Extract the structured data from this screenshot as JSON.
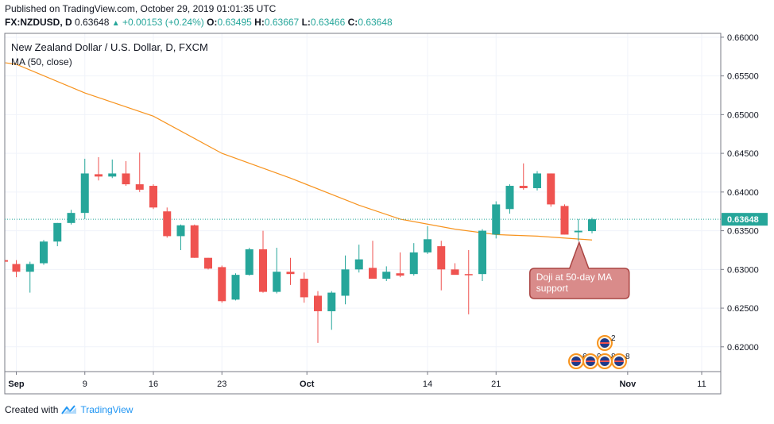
{
  "header": {
    "published": "Published on TradingView.com, October 29, 2019 01:01:35 UTC",
    "symbol": "FX:NZDUSD, D",
    "price": "0.63648",
    "change": "+0.00153 (+0.24%)",
    "o_label": "O:",
    "o": "0.63495",
    "h_label": "H:",
    "h": "0.63667",
    "l_label": "L:",
    "l": "0.63466",
    "c_label": "C:",
    "c": "0.63648"
  },
  "footer": {
    "created": "Created with",
    "brand": "TradingView"
  },
  "colors": {
    "up": "#26a69a",
    "down": "#ef5350",
    "ma": "#f7931e",
    "last_line": "#26a69a",
    "annotation_bg": "#d98b8a",
    "annotation_border": "#a94442",
    "grid": "#f0f3fa"
  },
  "chart_data": {
    "type": "candlestick",
    "title": "New Zealand Dollar / U.S. Dollar, D, FXCM",
    "indicator_label": "MA (50, close)",
    "ylim": [
      0.6168,
      0.6605
    ],
    "yticks": [
      0.62,
      0.625,
      0.63,
      0.635,
      0.64,
      0.645,
      0.65,
      0.655,
      0.66
    ],
    "ytick_labels": [
      "0.62000",
      "0.62500",
      "0.63000",
      "0.63500",
      "0.64000",
      "0.64500",
      "0.65000",
      "0.65500",
      "0.66000"
    ],
    "last_price_label": "0.63648",
    "last_price": 0.63648,
    "xticks": [
      {
        "label": "Sep",
        "i": 0,
        "bold": true
      },
      {
        "label": "9",
        "i": 5
      },
      {
        "label": "16",
        "i": 10
      },
      {
        "label": "23",
        "i": 15
      },
      {
        "label": "Oct",
        "i": 21.2,
        "bold": true
      },
      {
        "label": "14",
        "i": 30
      },
      {
        "label": "21",
        "i": 35
      },
      {
        "label": "Nov",
        "i": 44.6,
        "bold": true
      },
      {
        "label": "11",
        "i": 50
      }
    ],
    "candles": [
      {
        "o": 0.6307,
        "h": 0.6312,
        "l": 0.629,
        "c": 0.6297
      },
      {
        "o": 0.6297,
        "h": 0.631,
        "l": 0.627,
        "c": 0.6307
      },
      {
        "o": 0.6308,
        "h": 0.6338,
        "l": 0.6306,
        "c": 0.6336
      },
      {
        "o": 0.6336,
        "h": 0.636,
        "l": 0.633,
        "c": 0.636
      },
      {
        "o": 0.636,
        "h": 0.6377,
        "l": 0.6358,
        "c": 0.6373
      },
      {
        "o": 0.6373,
        "h": 0.6443,
        "l": 0.6365,
        "c": 0.6424
      },
      {
        "o": 0.6423,
        "h": 0.6445,
        "l": 0.6415,
        "c": 0.642
      },
      {
        "o": 0.642,
        "h": 0.6442,
        "l": 0.6418,
        "c": 0.6424
      },
      {
        "o": 0.6424,
        "h": 0.644,
        "l": 0.6408,
        "c": 0.641
      },
      {
        "o": 0.641,
        "h": 0.6451,
        "l": 0.64,
        "c": 0.6403
      },
      {
        "o": 0.6408,
        "h": 0.641,
        "l": 0.6378,
        "c": 0.638
      },
      {
        "o": 0.6375,
        "h": 0.638,
        "l": 0.6341,
        "c": 0.6343
      },
      {
        "o": 0.6343,
        "h": 0.6358,
        "l": 0.6325,
        "c": 0.6357
      },
      {
        "o": 0.6357,
        "h": 0.6358,
        "l": 0.6315,
        "c": 0.6315
      },
      {
        "o": 0.6315,
        "h": 0.6315,
        "l": 0.63,
        "c": 0.6301
      },
      {
        "o": 0.6303,
        "h": 0.6305,
        "l": 0.6257,
        "c": 0.6259
      },
      {
        "o": 0.6261,
        "h": 0.6295,
        "l": 0.626,
        "c": 0.6293
      },
      {
        "o": 0.6293,
        "h": 0.6328,
        "l": 0.6292,
        "c": 0.6326
      },
      {
        "o": 0.6326,
        "h": 0.635,
        "l": 0.627,
        "c": 0.6271
      },
      {
        "o": 0.6271,
        "h": 0.6328,
        "l": 0.6269,
        "c": 0.6297
      },
      {
        "o": 0.6297,
        "h": 0.6315,
        "l": 0.628,
        "c": 0.6294
      },
      {
        "o": 0.6288,
        "h": 0.6296,
        "l": 0.6257,
        "c": 0.6264
      },
      {
        "o": 0.6266,
        "h": 0.6272,
        "l": 0.6205,
        "c": 0.6246
      },
      {
        "o": 0.6246,
        "h": 0.6272,
        "l": 0.6222,
        "c": 0.627
      },
      {
        "o": 0.6266,
        "h": 0.6318,
        "l": 0.6255,
        "c": 0.63
      },
      {
        "o": 0.63,
        "h": 0.6332,
        "l": 0.6296,
        "c": 0.6313
      },
      {
        "o": 0.6302,
        "h": 0.6337,
        "l": 0.629,
        "c": 0.6288
      },
      {
        "o": 0.6288,
        "h": 0.6304,
        "l": 0.6285,
        "c": 0.6297
      },
      {
        "o": 0.6295,
        "h": 0.6322,
        "l": 0.629,
        "c": 0.6292
      },
      {
        "o": 0.6294,
        "h": 0.6334,
        "l": 0.6292,
        "c": 0.6322
      },
      {
        "o": 0.6322,
        "h": 0.6356,
        "l": 0.632,
        "c": 0.6339
      },
      {
        "o": 0.633,
        "h": 0.6337,
        "l": 0.6273,
        "c": 0.63
      },
      {
        "o": 0.63,
        "h": 0.6308,
        "l": 0.6297,
        "c": 0.6293
      },
      {
        "o": 0.6294,
        "h": 0.6325,
        "l": 0.6242,
        "c": 0.6293
      },
      {
        "o": 0.6294,
        "h": 0.6352,
        "l": 0.6285,
        "c": 0.635
      },
      {
        "o": 0.6345,
        "h": 0.6388,
        "l": 0.634,
        "c": 0.6384
      },
      {
        "o": 0.6378,
        "h": 0.641,
        "l": 0.6372,
        "c": 0.6408
      },
      {
        "o": 0.6408,
        "h": 0.6437,
        "l": 0.6403,
        "c": 0.6405
      },
      {
        "o": 0.6405,
        "h": 0.6427,
        "l": 0.6402,
        "c": 0.6424
      },
      {
        "o": 0.6424,
        "h": 0.6424,
        "l": 0.6381,
        "c": 0.6384
      },
      {
        "o": 0.6382,
        "h": 0.6384,
        "l": 0.6345,
        "c": 0.6345
      },
      {
        "o": 0.6348,
        "h": 0.6365,
        "l": 0.6337,
        "c": 0.635
      },
      {
        "o": 0.63495,
        "h": 0.63667,
        "l": 0.63466,
        "c": 0.63648
      }
    ],
    "ma50": [
      {
        "i": 0,
        "v": 0.6565
      },
      {
        "i": 5,
        "v": 0.6528
      },
      {
        "i": 10,
        "v": 0.6498
      },
      {
        "i": 15,
        "v": 0.645
      },
      {
        "i": 20,
        "v": 0.6418
      },
      {
        "i": 25,
        "v": 0.6383
      },
      {
        "i": 28,
        "v": 0.6365
      },
      {
        "i": 32,
        "v": 0.6352
      },
      {
        "i": 35,
        "v": 0.6345
      },
      {
        "i": 38,
        "v": 0.6343
      },
      {
        "i": 42,
        "v": 0.6338
      }
    ],
    "annotation": {
      "text1": "Doji at 50-day MA",
      "text2": "support",
      "candle_index": 41
    },
    "events_top": {
      "count": "2",
      "candle_index": 43.5
    },
    "events_bottom": [
      {
        "count": "6"
      },
      {
        "count": "9"
      },
      {
        "count": "8"
      },
      {
        "count": "8"
      }
    ]
  }
}
